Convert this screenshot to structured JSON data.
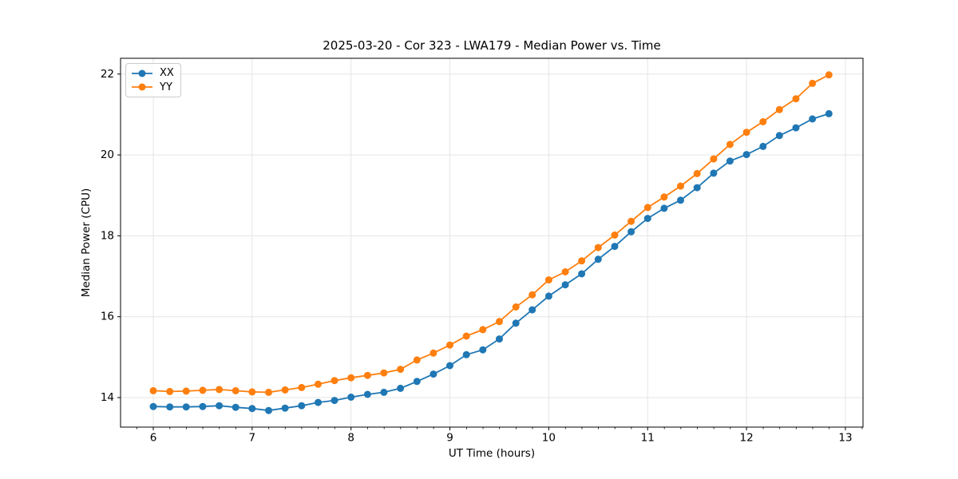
{
  "chart_data": {
    "type": "line",
    "title": "2025-03-20 - Cor 323 - LWA179 - Median Power vs. Time",
    "xlabel": "UT Time (hours)",
    "ylabel": "Median Power (CPU)",
    "xlim": [
      5.669,
      13.178
    ],
    "ylim": [
      13.27,
      22.39
    ],
    "x_ticks": [
      6,
      7,
      8,
      9,
      10,
      11,
      12,
      13
    ],
    "y_ticks": [
      14,
      16,
      18,
      20,
      22
    ],
    "x_minor_tick_step": 0.1667,
    "grid": true,
    "legend_position": "upper-left",
    "x": [
      6.0,
      6.167,
      6.333,
      6.5,
      6.667,
      6.833,
      7.0,
      7.167,
      7.333,
      7.5,
      7.667,
      7.833,
      8.0,
      8.167,
      8.333,
      8.5,
      8.667,
      8.833,
      9.0,
      9.167,
      9.333,
      9.5,
      9.667,
      9.833,
      10.0,
      10.167,
      10.333,
      10.5,
      10.667,
      10.833,
      11.0,
      11.167,
      11.333,
      11.5,
      11.667,
      11.833,
      12.0,
      12.167,
      12.333,
      12.5,
      12.667,
      12.833
    ],
    "series": [
      {
        "name": "XX",
        "color": "#1f77b4",
        "values": [
          13.78,
          13.77,
          13.77,
          13.78,
          13.8,
          13.76,
          13.73,
          13.68,
          13.74,
          13.8,
          13.88,
          13.93,
          14.01,
          14.08,
          14.13,
          14.23,
          14.4,
          14.58,
          14.79,
          15.06,
          15.18,
          15.45,
          15.84,
          16.17,
          16.51,
          16.79,
          17.06,
          17.42,
          17.74,
          18.1,
          18.43,
          18.68,
          18.88,
          19.19,
          19.55,
          19.85,
          20.01,
          20.21,
          20.48,
          20.67,
          20.89,
          21.02
        ]
      },
      {
        "name": "YY",
        "color": "#ff7f0e",
        "values": [
          14.17,
          14.15,
          14.16,
          14.18,
          14.2,
          14.17,
          14.14,
          14.13,
          14.19,
          14.25,
          14.33,
          14.42,
          14.49,
          14.55,
          14.61,
          14.7,
          14.93,
          15.1,
          15.3,
          15.52,
          15.68,
          15.88,
          16.24,
          16.54,
          16.91,
          17.11,
          17.38,
          17.71,
          18.02,
          18.36,
          18.7,
          18.96,
          19.23,
          19.54,
          19.9,
          20.26,
          20.56,
          20.82,
          21.12,
          21.39,
          21.77,
          21.98
        ]
      }
    ],
    "style": {
      "grid_color": "#e5e5e5",
      "spine_color": "#000000",
      "tick_color": "#000000",
      "marker_radius": 4.5,
      "line_width": 1.8
    }
  }
}
